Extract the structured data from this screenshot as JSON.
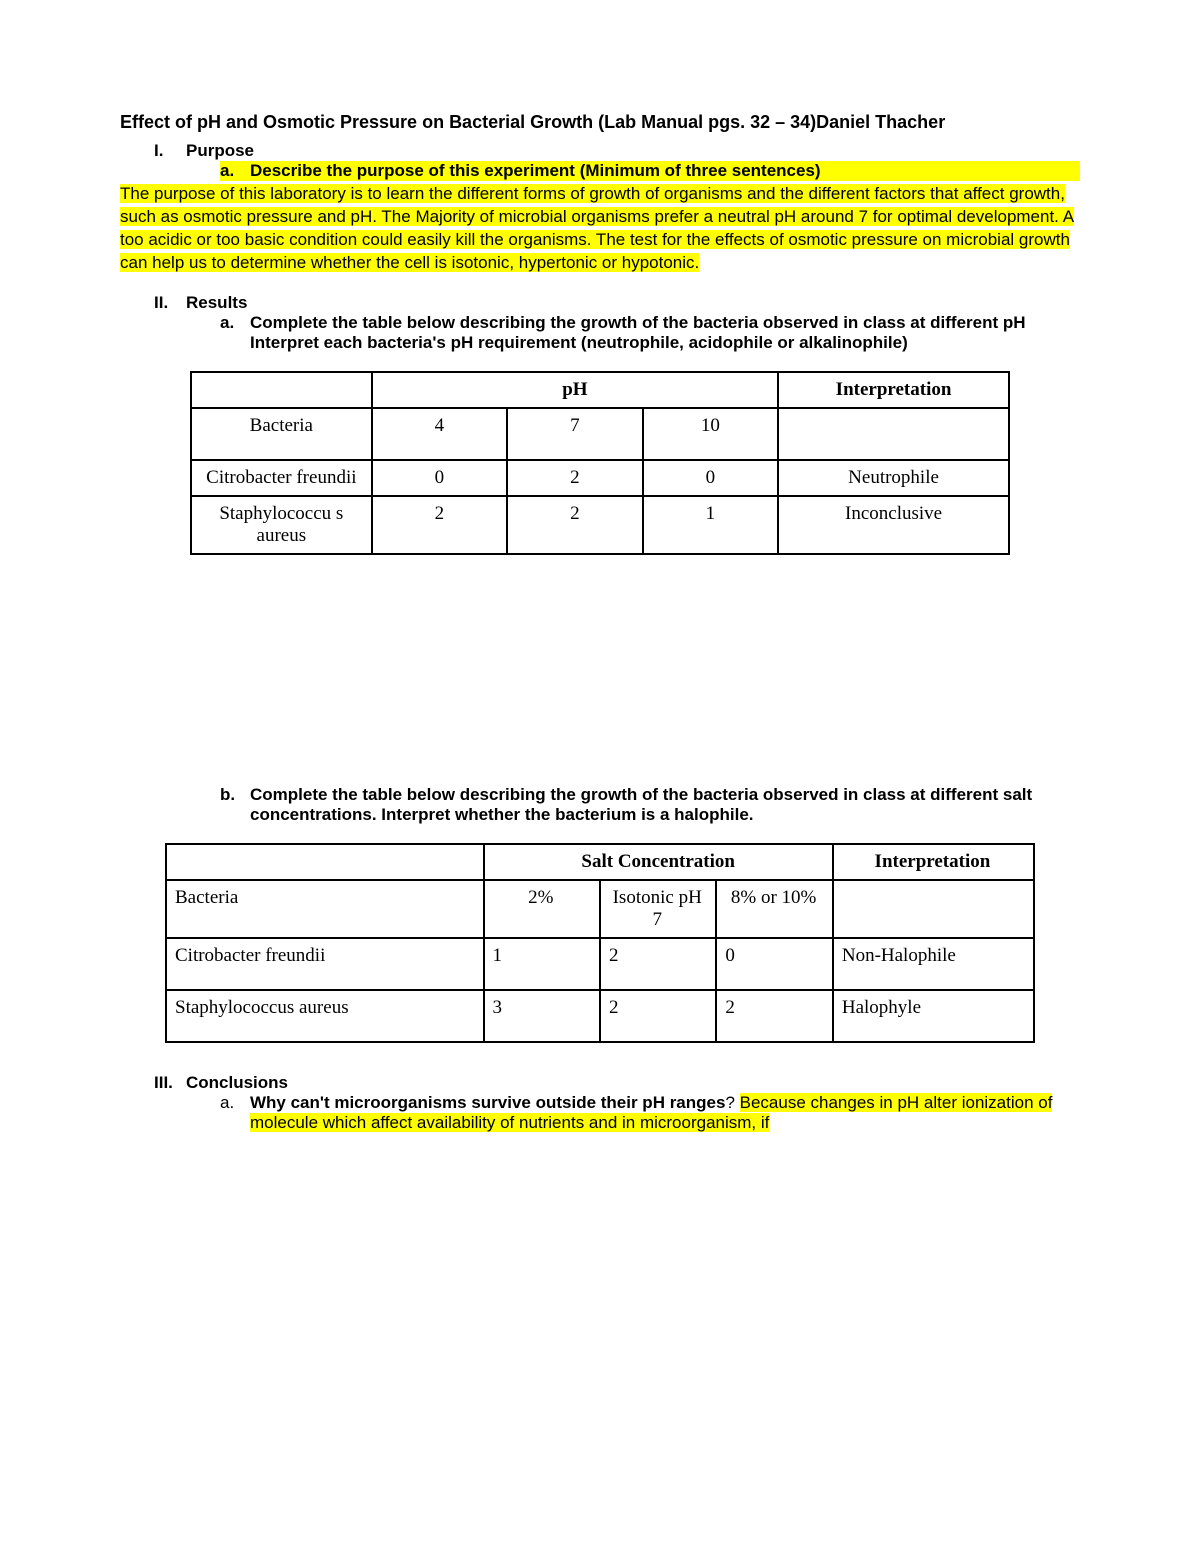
{
  "title_line": "Effect of pH and Osmotic Pressure on Bacterial Growth (Lab Manual pgs. 32 – 34)Daniel Thacher",
  "sections": {
    "I": {
      "roman": "I.",
      "heading": "Purpose",
      "a_label": "a.",
      "a_text": "Describe the purpose of this experiment (Minimum of three sentences)",
      "body": "The purpose of this laboratory is to learn the different forms of growth of organisms and the different factors that affect growth, such as osmotic pressure and pH. The Majority of microbial organisms prefer a neutral pH around 7 for optimal development. A too acidic or too basic condition could easily kill the organisms. The test for the effects of osmotic pressure on microbial growth can help us to determine whether the cell is isotonic, hypertonic or hypotonic."
    },
    "II": {
      "roman": "II.",
      "heading": "Results",
      "a_label": "a.",
      "a_text1": "Complete the table below describing the growth of the bacteria observed in class at different pH",
      "a_text2": "Interpret each bacteria's pH requirement (neutrophile, acidophile or alkalinophile)",
      "b_label": "b.",
      "b_text": "Complete the table below describing the growth of the bacteria observed in class at different salt concentrations. Interpret whether the bacterium is a halophile."
    },
    "III": {
      "roman": "III.",
      "heading": "Conclusions",
      "a_label": "a.",
      "a_question": "Why can't microorganisms survive outside their pH ranges",
      "a_answer": "Because changes in pH alter ionization of molecule which affect availability of nutrients and in microorganism, if"
    }
  },
  "table1": {
    "header_ph": "pH",
    "header_int": "Interpretation",
    "row_labels": "Bacteria",
    "ph_cols": [
      "4",
      "7",
      "10"
    ],
    "rows": [
      {
        "name": "Citrobacter freundii",
        "vals": [
          "0",
          "2",
          "0"
        ],
        "interp": "Neutrophile"
      },
      {
        "name": "Staphylococcu s aureus",
        "vals": [
          "2",
          "2",
          "1"
        ],
        "interp": "Inconclusive"
      }
    ]
  },
  "table2": {
    "header_sc": "Salt Concentration",
    "header_int": "Interpretation",
    "row_labels": "Bacteria",
    "sc_cols": [
      "2%",
      "Isotonic pH 7",
      "8% or 10%"
    ],
    "rows": [
      {
        "name": "Citrobacter freundii",
        "vals": [
          "1",
          "2",
          "0"
        ],
        "interp": "Non-Halophile"
      },
      {
        "name": "Staphylococcus aureus",
        "vals": [
          "3",
          "2",
          "2"
        ],
        "interp": "Halophyle"
      }
    ]
  },
  "colors": {
    "highlight": "#ffff00",
    "text": "#000000",
    "background": "#ffffff",
    "border": "#000000"
  }
}
